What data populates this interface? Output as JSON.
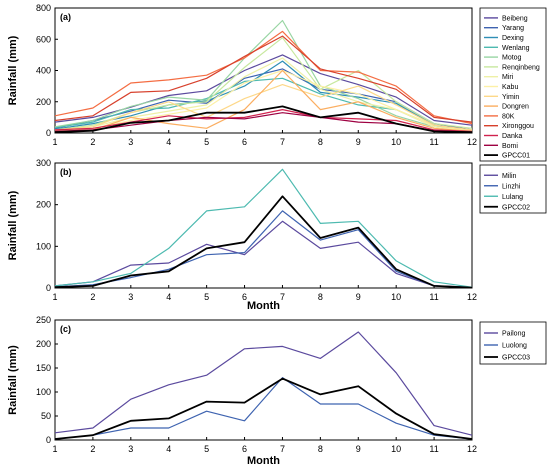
{
  "chart_data": [
    {
      "panel_label": "(a)",
      "type": "line",
      "xlabel": "",
      "ylabel": "Rainfall (mm)",
      "ylim": [
        0,
        800
      ],
      "yticks": [
        0,
        200,
        400,
        600,
        800
      ],
      "x": [
        1,
        2,
        3,
        4,
        5,
        6,
        7,
        8,
        9,
        10,
        11,
        12
      ],
      "legend_position": "outside-right",
      "series": [
        {
          "name": "Beibeng",
          "color": "#5b4a9e",
          "values": [
            70,
            100,
            165,
            240,
            270,
            400,
            500,
            380,
            310,
            230,
            80,
            50
          ]
        },
        {
          "name": "Yarang",
          "color": "#3e63b0",
          "values": [
            30,
            80,
            140,
            210,
            190,
            350,
            410,
            280,
            250,
            200,
            60,
            20
          ]
        },
        {
          "name": "Dexing",
          "color": "#2f8fb6",
          "values": [
            25,
            60,
            110,
            180,
            205,
            300,
            460,
            260,
            230,
            190,
            50,
            15
          ]
        },
        {
          "name": "Wenlang",
          "color": "#4dbab0",
          "values": [
            35,
            70,
            150,
            160,
            220,
            330,
            350,
            250,
            180,
            150,
            40,
            15
          ]
        },
        {
          "name": "Motog",
          "color": "#98d5a3",
          "values": [
            40,
            80,
            170,
            230,
            210,
            480,
            720,
            300,
            220,
            110,
            40,
            20
          ]
        },
        {
          "name": "Renqinbeng",
          "color": "#c7e89e",
          "values": [
            20,
            50,
            130,
            180,
            200,
            420,
            610,
            280,
            400,
            200,
            60,
            30
          ]
        },
        {
          "name": "Miri",
          "color": "#eef0a6",
          "values": [
            15,
            40,
            100,
            140,
            180,
            360,
            480,
            280,
            200,
            150,
            50,
            15
          ]
        },
        {
          "name": "Kabu",
          "color": "#fdf0a6",
          "values": [
            10,
            30,
            80,
            120,
            160,
            320,
            400,
            300,
            250,
            150,
            40,
            10
          ]
        },
        {
          "name": "Yimin",
          "color": "#fdd889",
          "values": [
            20,
            40,
            130,
            200,
            100,
            220,
            310,
            230,
            300,
            180,
            50,
            20
          ]
        },
        {
          "name": "Dongren",
          "color": "#fbae61",
          "values": [
            10,
            20,
            100,
            60,
            30,
            150,
            400,
            150,
            200,
            100,
            30,
            10
          ]
        },
        {
          "name": "80K",
          "color": "#f46d43",
          "values": [
            110,
            160,
            320,
            340,
            370,
            480,
            650,
            400,
            390,
            300,
            110,
            60
          ]
        },
        {
          "name": "Xironggou",
          "color": "#d7402c",
          "values": [
            80,
            110,
            260,
            270,
            350,
            490,
            620,
            410,
            350,
            280,
            100,
            70
          ]
        },
        {
          "name": "Danka",
          "color": "#d0234e",
          "values": [
            20,
            30,
            70,
            110,
            90,
            100,
            150,
            100,
            90,
            80,
            20,
            10
          ]
        },
        {
          "name": "Bomi",
          "color": "#9e0142",
          "values": [
            10,
            20,
            50,
            80,
            100,
            90,
            130,
            100,
            70,
            60,
            15,
            5
          ]
        },
        {
          "name": "GPCC01",
          "color": "#000000",
          "values": [
            5,
            15,
            65,
            80,
            130,
            130,
            170,
            100,
            130,
            60,
            10,
            5
          ]
        }
      ]
    },
    {
      "panel_label": "(b)",
      "type": "line",
      "xlabel": "Month",
      "ylabel": "Rainfall (mm)",
      "ylim": [
        0,
        300
      ],
      "yticks": [
        0,
        100,
        200,
        300
      ],
      "x": [
        1,
        2,
        3,
        4,
        5,
        6,
        7,
        8,
        9,
        10,
        11,
        12
      ],
      "legend_position": "outside-right",
      "series": [
        {
          "name": "Milin",
          "color": "#5b4a9e",
          "values": [
            5,
            15,
            55,
            60,
            105,
            80,
            160,
            95,
            110,
            35,
            5,
            2
          ]
        },
        {
          "name": "Linzhi",
          "color": "#3e63b0",
          "values": [
            3,
            8,
            25,
            45,
            80,
            85,
            185,
            115,
            140,
            40,
            5,
            2
          ]
        },
        {
          "name": "Lulang",
          "color": "#4dbab0",
          "values": [
            5,
            15,
            35,
            95,
            185,
            195,
            285,
            155,
            160,
            65,
            15,
            2
          ]
        },
        {
          "name": "GPCC02",
          "color": "#000000",
          "values": [
            2,
            5,
            30,
            40,
            95,
            110,
            220,
            120,
            145,
            45,
            5,
            1
          ]
        }
      ]
    },
    {
      "panel_label": "(c)",
      "type": "line",
      "xlabel": "Month",
      "ylabel": "Rainfall (mm)",
      "ylim": [
        0,
        250
      ],
      "yticks": [
        0,
        50,
        100,
        150,
        200,
        250
      ],
      "x": [
        1,
        2,
        3,
        4,
        5,
        6,
        7,
        8,
        9,
        10,
        11,
        12
      ],
      "legend_position": "outside-right",
      "series": [
        {
          "name": "Pailong",
          "color": "#5b4a9e",
          "values": [
            15,
            25,
            85,
            115,
            135,
            190,
            195,
            170,
            225,
            140,
            30,
            10
          ]
        },
        {
          "name": "Luolong",
          "color": "#3e63b0",
          "values": [
            2,
            10,
            25,
            25,
            60,
            40,
            130,
            75,
            75,
            35,
            10,
            2
          ]
        },
        {
          "name": "GPCC03",
          "color": "#000000",
          "values": [
            2,
            10,
            40,
            45,
            80,
            78,
            128,
            95,
            112,
            55,
            12,
            2
          ]
        }
      ]
    }
  ]
}
